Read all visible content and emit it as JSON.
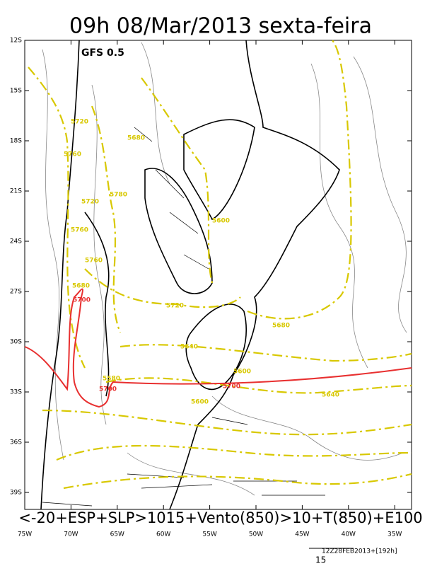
{
  "title": "09h 08/Mar/2013 sexta-feira",
  "model": "GFS 0.5",
  "lat_labels": [
    "12S",
    "15S",
    "18S",
    "21S",
    "24S",
    "27S",
    "30S",
    "33S",
    "36S",
    "39S"
  ],
  "lon_labels": [
    "75W",
    "70W",
    "65W",
    "60W",
    "55W",
    "50W",
    "45W",
    "40W",
    "35W"
  ],
  "contour_labels": [
    "5720",
    "5680",
    "5760",
    "5780",
    "5720",
    "5760",
    "5600",
    "5760",
    "5680",
    "5720",
    "5680",
    "5640",
    "5600",
    "5580",
    "5640",
    "5600"
  ],
  "red_labels": [
    "5700",
    "5700",
    "5700"
  ],
  "caption": "<-20+ESP+SLP>1015+Vento(850)>10+T(850)+E100",
  "run": "12Z28FEB2013+[192h]",
  "reference_speed": "15"
}
